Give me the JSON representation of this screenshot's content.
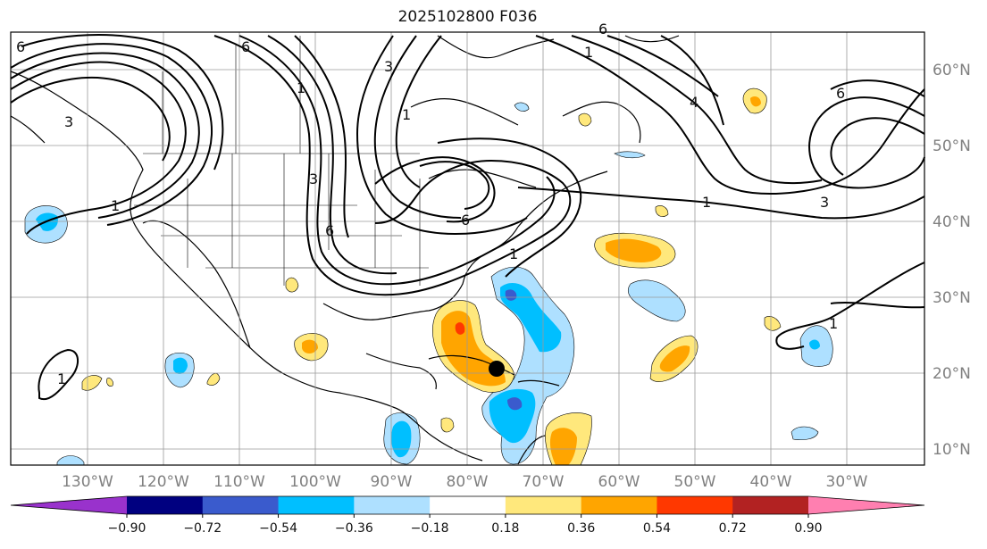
{
  "title": "2025102800 F036",
  "lon_labels": [
    "130°W",
    "120°W",
    "110°W",
    "100°W",
    "90°W",
    "80°W",
    "70°W",
    "60°W",
    "50°W",
    "40°W",
    "30°W"
  ],
  "lat_labels": [
    "60°N",
    "50°N",
    "40°N",
    "30°N",
    "20°N",
    "10°N"
  ],
  "colorbar": {
    "ticks": [
      "−0.90",
      "−0.72",
      "−0.54",
      "−0.36",
      "−0.18",
      "0.18",
      "0.36",
      "0.54",
      "0.72",
      "0.90"
    ],
    "colors": [
      "#9932cc",
      "#000080",
      "#3a5bcd",
      "#00bfff",
      "#aee0ff",
      "#ffffff",
      "#ffe87c",
      "#ffa500",
      "#ff3800",
      "#b22222",
      "#ff7fb0"
    ]
  },
  "contour_labels": [
    "6",
    "1",
    "3",
    "6",
    "1",
    "3",
    "6",
    "1",
    "3",
    "6",
    "1",
    "6",
    "1",
    "4",
    "6",
    "1",
    "3",
    "1",
    "1"
  ],
  "marker": {
    "name": "storm-center",
    "color": "#000000"
  }
}
